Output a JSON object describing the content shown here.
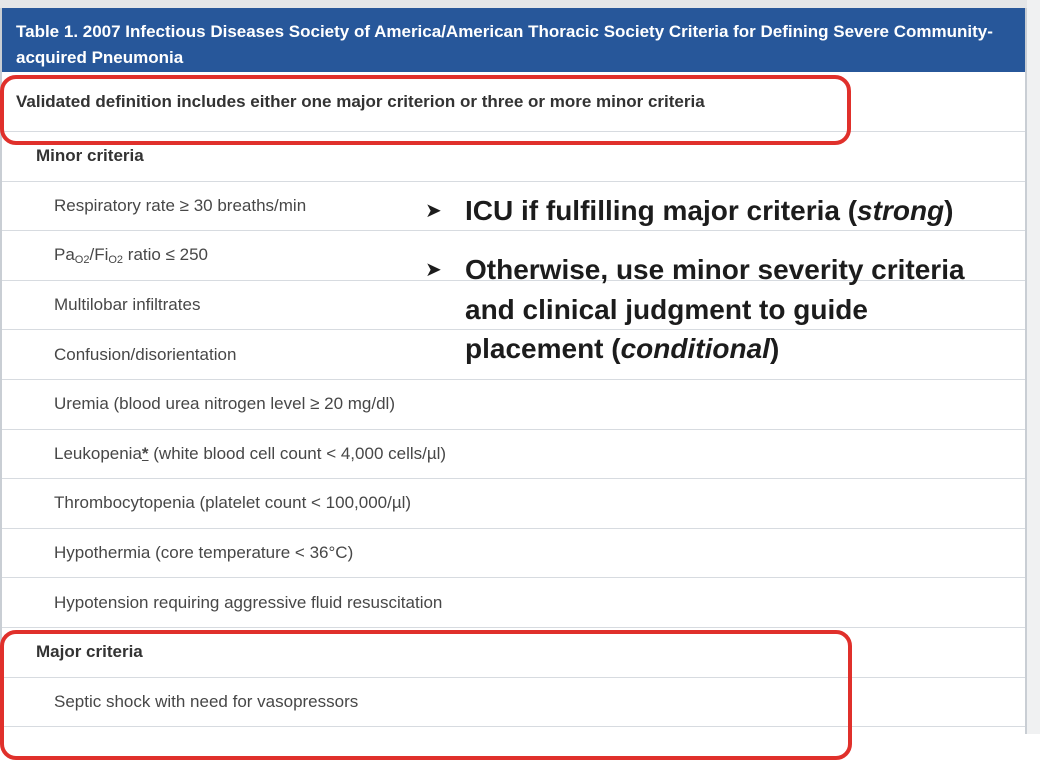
{
  "table": {
    "caption": "Table 1. 2007 Infectious Diseases Society of America/American Thoracic Society Criteria for Defining Severe Community-acquired Pneumonia",
    "definition": "Validated definition includes either one major criterion or three or more minor criteria",
    "minor_header": "Minor criteria",
    "minor_items": {
      "respiratory": "Respiratory rate ≥ 30 breaths/min",
      "pao2_pa": "Pa",
      "pao2_sub1": "O2",
      "pao2_mid": "/Fi",
      "pao2_sub2": "O2",
      "pao2_rest": " ratio ≤ 250",
      "multilobar": "Multilobar infiltrates",
      "confusion": "Confusion/disorientation",
      "uremia": "Uremia (blood urea nitrogen level ≥ 20 mg/dl)",
      "leuko_a": "Leukopenia",
      "leuko_star": "*",
      "leuko_b": " (white blood cell count < 4,000 cells/µl)",
      "thrombo": "Thrombocytopenia (platelet count < 100,000/µl)",
      "hypothermia": "Hypothermia (core temperature < 36°C)",
      "hypotension": "Hypotension requiring aggressive fluid resuscitation"
    },
    "major_header": "Major criteria",
    "major_items": {
      "septic": "Septic shock with need for vasopressors"
    }
  },
  "overlay": {
    "bullet_symbol": "➤",
    "b1_text": "ICU if fulfilling major criteria (",
    "b1_italic": "strong",
    "b1_end": ")",
    "b2_line1": "Otherwise, use minor severity criteria",
    "b2_line2": "and clinical judgment to guide",
    "b2_line3a": "placement (",
    "b2_italic": "conditional",
    "b2_line3b": ")"
  },
  "colors": {
    "header_bg": "#27579a",
    "highlight_box": "#e0302b"
  }
}
